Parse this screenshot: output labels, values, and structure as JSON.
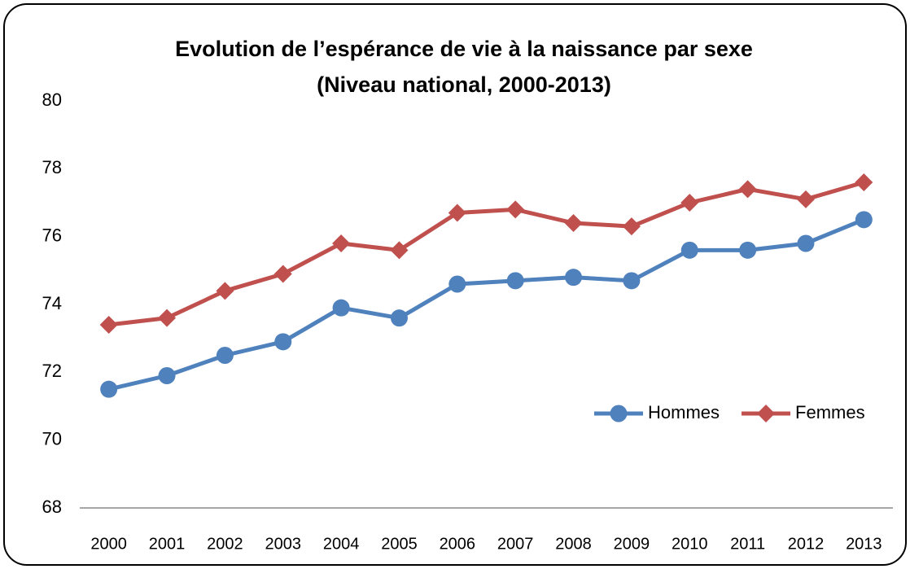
{
  "chart_data": {
    "type": "line",
    "title": [
      "Evolution de l’espérance de vie à la naissance par sexe",
      "(Niveau national, 2000-2013)"
    ],
    "categories": [
      "2000",
      "2001",
      "2002",
      "2003",
      "2004",
      "2005",
      "2006",
      "2007",
      "2008",
      "2009",
      "2010",
      "2011",
      "2012",
      "2013"
    ],
    "series": [
      {
        "name": "Hommes",
        "color": "#4f81bd",
        "marker": "circle",
        "values": [
          71.5,
          71.9,
          72.5,
          72.9,
          73.9,
          73.6,
          74.6,
          74.7,
          74.8,
          74.7,
          75.6,
          75.6,
          75.8,
          76.5
        ]
      },
      {
        "name": "Femmes",
        "color": "#c0504d",
        "marker": "diamond",
        "values": [
          73.4,
          73.6,
          74.4,
          74.9,
          75.8,
          75.6,
          76.7,
          76.8,
          76.4,
          76.3,
          77.0,
          77.4,
          77.1,
          77.6
        ]
      }
    ],
    "ylim": [
      68,
      80
    ],
    "yticks": [
      68,
      70,
      72,
      74,
      76,
      78,
      80
    ],
    "grid": false,
    "legend": "lower right"
  }
}
